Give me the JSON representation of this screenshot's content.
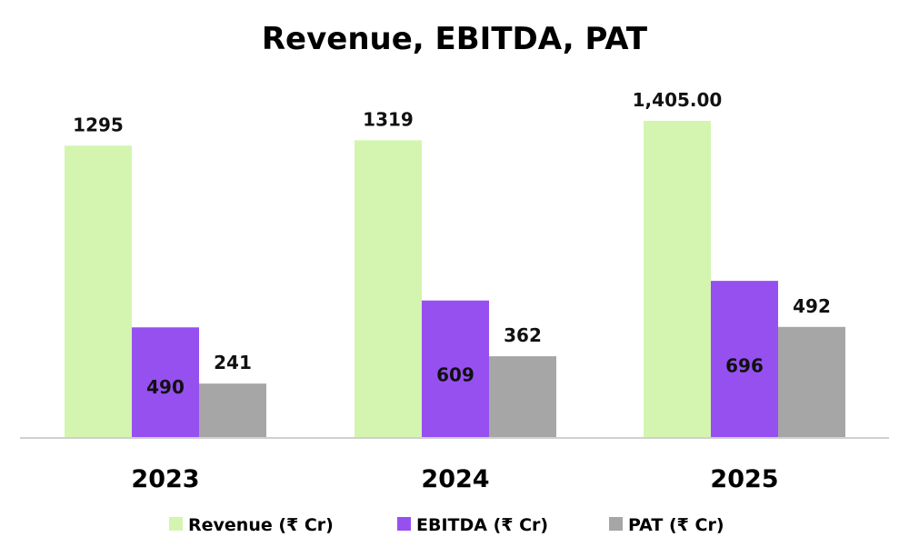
{
  "chart_data": {
    "type": "bar",
    "title": "Revenue, EBITDA, PAT",
    "categories": [
      "2023",
      "2024",
      "2025"
    ],
    "series": [
      {
        "name": "Revenue (₹ Cr)",
        "color": "#d4f5b0",
        "values": [
          1295,
          1319,
          1405
        ],
        "labels": [
          "1295",
          "1319",
          "1,405.00"
        ]
      },
      {
        "name": "EBITDA (₹ Cr)",
        "color": "#9650f0",
        "values": [
          490,
          609,
          696
        ],
        "labels": [
          "490",
          "609",
          "696"
        ]
      },
      {
        "name": "PAT (₹ Cr)",
        "color": "#a6a6a6",
        "values": [
          241,
          362,
          492
        ],
        "labels": [
          "241",
          "362",
          "492"
        ]
      }
    ],
    "xlabel": "",
    "ylabel": "",
    "ylim": [
      0,
      1417
    ],
    "grid": false,
    "legend": "bottom"
  }
}
